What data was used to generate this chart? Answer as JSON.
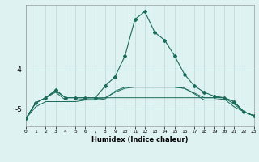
{
  "xlabel": "Humidex (Indice chaleur)",
  "x_values": [
    0,
    1,
    2,
    3,
    4,
    5,
    6,
    7,
    8,
    9,
    10,
    11,
    12,
    13,
    14,
    15,
    16,
    17,
    18,
    19,
    20,
    21,
    22,
    23
  ],
  "line_main": [
    -5.25,
    -4.85,
    -4.72,
    -4.52,
    -4.72,
    -4.72,
    -4.72,
    -4.72,
    -4.42,
    -4.18,
    -3.65,
    -2.72,
    -2.52,
    -3.05,
    -3.25,
    -3.65,
    -4.12,
    -4.42,
    -4.58,
    -4.68,
    -4.72,
    -4.82,
    -5.08,
    -5.18
  ],
  "line_upper": [
    -5.25,
    -4.85,
    -4.72,
    -4.55,
    -4.72,
    -4.72,
    -4.72,
    -4.72,
    -4.72,
    -4.72,
    -4.72,
    -4.72,
    -4.72,
    -4.72,
    -4.72,
    -4.72,
    -4.72,
    -4.72,
    -4.72,
    -4.72,
    -4.72,
    -4.82,
    -5.08,
    -5.18
  ],
  "line_mid1": [
    -5.25,
    -4.85,
    -4.72,
    -4.58,
    -4.78,
    -4.78,
    -4.75,
    -4.75,
    -4.72,
    -4.58,
    -4.48,
    -4.45,
    -4.45,
    -4.45,
    -4.45,
    -4.45,
    -4.48,
    -4.6,
    -4.72,
    -4.72,
    -4.72,
    -4.88,
    -5.08,
    -5.18
  ],
  "line_mid2": [
    -5.25,
    -4.95,
    -4.82,
    -4.82,
    -4.82,
    -4.82,
    -4.78,
    -4.78,
    -4.75,
    -4.55,
    -4.45,
    -4.45,
    -4.45,
    -4.45,
    -4.45,
    -4.45,
    -4.48,
    -4.62,
    -4.78,
    -4.78,
    -4.75,
    -4.95,
    -5.08,
    -5.18
  ],
  "bg_color": "#dff2f2",
  "line_color": "#1a6b5a",
  "grid_color": "#b8d8d8",
  "ylim": [
    -5.45,
    -2.35
  ],
  "yticks": [
    -5,
    -4
  ],
  "xlim": [
    0,
    23
  ]
}
